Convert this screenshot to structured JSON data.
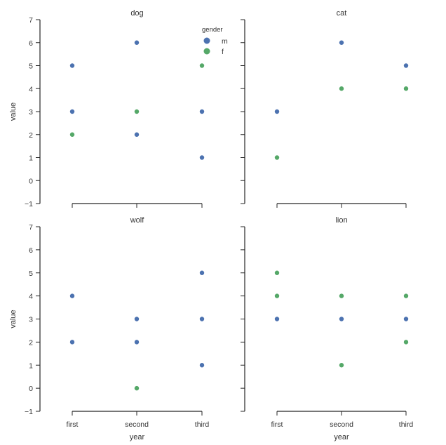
{
  "chart_data": [
    {
      "type": "scatter",
      "title": "dog",
      "xlabel": "",
      "ylabel": "value",
      "categories": [
        "first",
        "second",
        "third"
      ],
      "ylim": [
        -1,
        7
      ],
      "yticks": [
        -1,
        0,
        1,
        2,
        3,
        4,
        5,
        6,
        7
      ],
      "series": [
        {
          "name": "m",
          "points": [
            [
              "first",
              5
            ],
            [
              "first",
              3
            ],
            [
              "second",
              6
            ],
            [
              "second",
              2
            ],
            [
              "third",
              3
            ],
            [
              "third",
              1
            ]
          ]
        },
        {
          "name": "f",
          "points": [
            [
              "first",
              2
            ],
            [
              "second",
              3
            ],
            [
              "third",
              5
            ]
          ]
        }
      ]
    },
    {
      "type": "scatter",
      "title": "cat",
      "xlabel": "",
      "ylabel": "",
      "categories": [
        "first",
        "second",
        "third"
      ],
      "ylim": [
        -1,
        7
      ],
      "yticks": [
        -1,
        0,
        1,
        2,
        3,
        4,
        5,
        6,
        7
      ],
      "series": [
        {
          "name": "m",
          "points": [
            [
              "first",
              3
            ],
            [
              "second",
              6
            ],
            [
              "third",
              5
            ]
          ]
        },
        {
          "name": "f",
          "points": [
            [
              "first",
              1
            ],
            [
              "second",
              4
            ],
            [
              "third",
              4
            ]
          ]
        }
      ]
    },
    {
      "type": "scatter",
      "title": "wolf",
      "xlabel": "year",
      "ylabel": "value",
      "categories": [
        "first",
        "second",
        "third"
      ],
      "ylim": [
        -1,
        7
      ],
      "yticks": [
        -1,
        0,
        1,
        2,
        3,
        4,
        5,
        6,
        7
      ],
      "series": [
        {
          "name": "m",
          "points": [
            [
              "first",
              4
            ],
            [
              "first",
              2
            ],
            [
              "second",
              3
            ],
            [
              "second",
              2
            ],
            [
              "third",
              5
            ],
            [
              "third",
              3
            ],
            [
              "third",
              1
            ]
          ]
        },
        {
          "name": "f",
          "points": [
            [
              "second",
              0
            ]
          ]
        }
      ]
    },
    {
      "type": "scatter",
      "title": "lion",
      "xlabel": "year",
      "ylabel": "",
      "categories": [
        "first",
        "second",
        "third"
      ],
      "ylim": [
        -1,
        7
      ],
      "yticks": [
        -1,
        0,
        1,
        2,
        3,
        4,
        5,
        6,
        7
      ],
      "series": [
        {
          "name": "m",
          "points": [
            [
              "first",
              3
            ],
            [
              "second",
              3
            ],
            [
              "third",
              3
            ]
          ]
        },
        {
          "name": "f",
          "points": [
            [
              "first",
              5
            ],
            [
              "first",
              4
            ],
            [
              "second",
              4
            ],
            [
              "second",
              1
            ],
            [
              "third",
              4
            ],
            [
              "third",
              2
            ]
          ]
        }
      ]
    }
  ],
  "legend": {
    "title": "gender",
    "placement": "top-right of first panel",
    "entries": [
      {
        "label": "m",
        "color": "#4c72b0"
      },
      {
        "label": "f",
        "color": "#55a868"
      }
    ]
  }
}
